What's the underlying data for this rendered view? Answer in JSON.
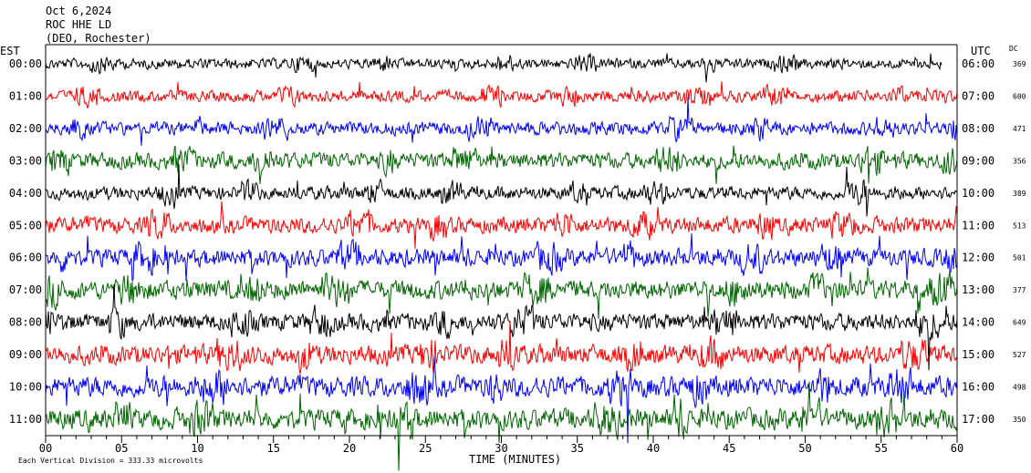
{
  "header": {
    "date": "Oct 6,2024",
    "station": "ROC HHE LD",
    "location": "(DEO, Rochester)"
  },
  "left_timezone": "EST",
  "right_timezone": "UTC",
  "dc_label": "DC",
  "footer_note": "Each Vertical Division = 333.33 microvolts",
  "chart_data": {
    "type": "line",
    "title": "Oct 6,2024",
    "xlabel": "TIME (MINUTES)",
    "ylabel": "",
    "xlim": [
      0,
      60
    ],
    "x_ticks": [
      "00",
      "05",
      "10",
      "15",
      "20",
      "25",
      "30",
      "35",
      "40",
      "45",
      "50",
      "55",
      "60"
    ],
    "series": [
      {
        "left": "00:00",
        "right": "06:00",
        "dc": "369",
        "color": "#000000",
        "amp": 7,
        "end_minute": 59
      },
      {
        "left": "01:00",
        "right": "07:00",
        "dc": "600",
        "color": "#ff0000",
        "amp": 8,
        "end_minute": 60
      },
      {
        "left": "02:00",
        "right": "08:00",
        "dc": "471",
        "color": "#0000ff",
        "amp": 9,
        "end_minute": 60
      },
      {
        "left": "03:00",
        "right": "09:00",
        "dc": "356",
        "color": "#006600",
        "amp": 11,
        "end_minute": 60
      },
      {
        "left": "04:00",
        "right": "10:00",
        "dc": "389",
        "color": "#000000",
        "amp": 9,
        "end_minute": 60
      },
      {
        "left": "05:00",
        "right": "11:00",
        "dc": "513",
        "color": "#ff0000",
        "amp": 11,
        "end_minute": 60
      },
      {
        "left": "06:00",
        "right": "12:00",
        "dc": "501",
        "color": "#0000ff",
        "amp": 12,
        "end_minute": 60
      },
      {
        "left": "07:00",
        "right": "13:00",
        "dc": "377",
        "color": "#006600",
        "amp": 13,
        "end_minute": 60
      },
      {
        "left": "08:00",
        "right": "14:00",
        "dc": "649",
        "color": "#000000",
        "amp": 12,
        "end_minute": 60
      },
      {
        "left": "09:00",
        "right": "15:00",
        "dc": "527",
        "color": "#ff0000",
        "amp": 13,
        "end_minute": 60
      },
      {
        "left": "10:00",
        "right": "16:00",
        "dc": "498",
        "color": "#0000ff",
        "amp": 14,
        "end_minute": 60
      },
      {
        "left": "11:00",
        "right": "17:00",
        "dc": "350",
        "color": "#006600",
        "amp": 14,
        "end_minute": 60
      }
    ]
  }
}
